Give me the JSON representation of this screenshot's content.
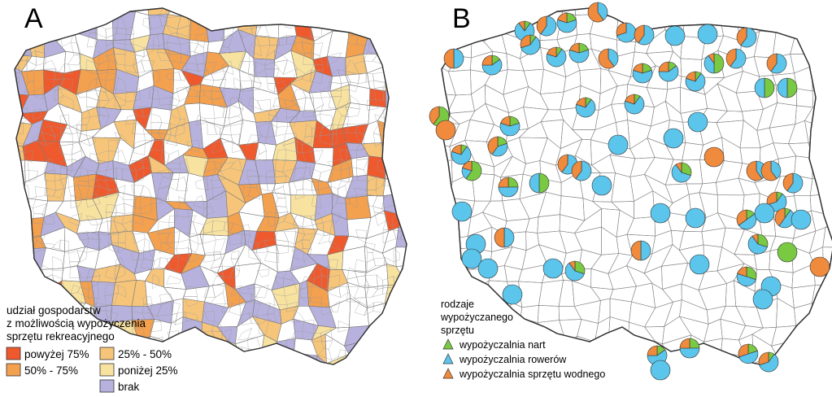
{
  "panel_a": {
    "label": "A",
    "legend": {
      "title_lines": [
        "udział gospodarstw",
        "z możliwością wypożyczenia",
        "sprzętu rekreacyjnego"
      ],
      "classes": [
        {
          "label": "powyżej 75%",
          "color": "#ee5a2e"
        },
        {
          "label": "50% - 75%",
          "color": "#f3a04f"
        },
        {
          "label": "25% - 50%",
          "color": "#f6c57a"
        },
        {
          "label": "poniżej 25%",
          "color": "#f8e2a0"
        },
        {
          "label": "brak",
          "color": "#b7b1dd"
        }
      ]
    }
  },
  "panel_b": {
    "label": "B",
    "legend": {
      "title_lines": [
        "rodzaje",
        "wypożyczanego",
        "sprzętu"
      ],
      "items": [
        {
          "label": "wypożyczalnia nart",
          "color": "#7ac943"
        },
        {
          "label": "wypożyczalnia rowerów",
          "color": "#5bc5ec"
        },
        {
          "label": "wypożyczalnia sprzętu wodnego",
          "color": "#f08a3c"
        }
      ]
    }
  },
  "colors": {
    "outline": "#444444",
    "internal_border": "#777777",
    "land": "#ffffff"
  }
}
